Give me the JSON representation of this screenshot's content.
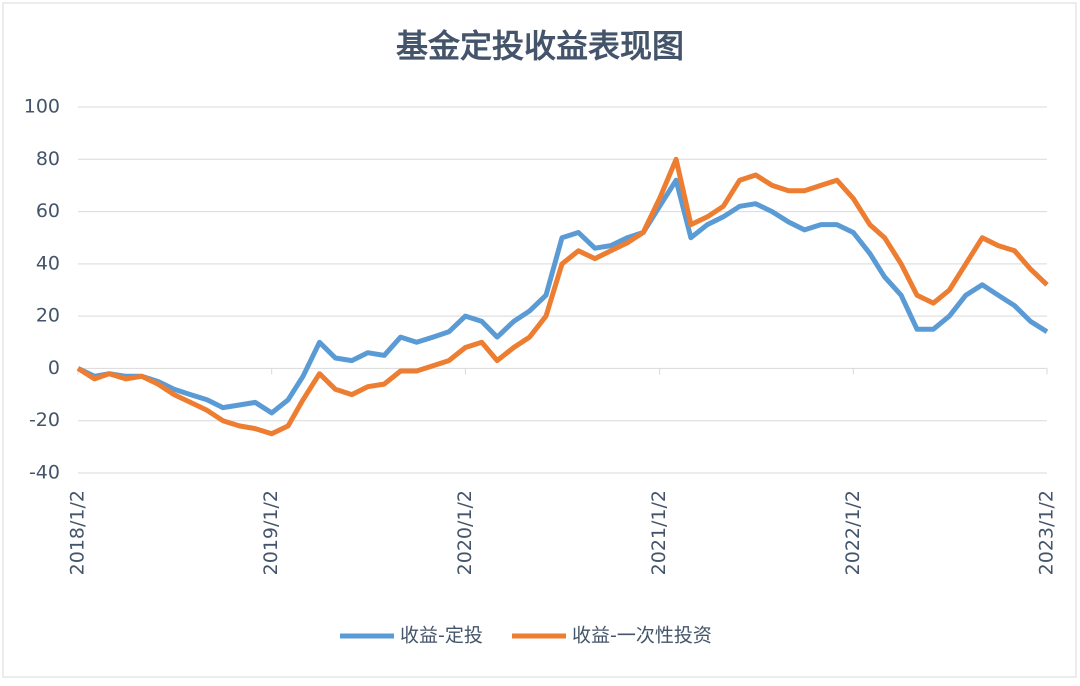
{
  "chart_data": {
    "type": "line",
    "title": "基金定投收益表现图",
    "x": [
      "2018/1/2",
      "2018/2/2",
      "2018/3/2",
      "2018/4/2",
      "2018/5/2",
      "2018/6/2",
      "2018/7/2",
      "2018/8/2",
      "2018/9/2",
      "2018/10/2",
      "2018/11/2",
      "2018/12/2",
      "2019/1/2",
      "2019/2/2",
      "2019/3/2",
      "2019/4/2",
      "2019/5/2",
      "2019/6/2",
      "2019/7/2",
      "2019/8/2",
      "2019/9/2",
      "2019/10/2",
      "2019/11/2",
      "2019/12/2",
      "2020/1/2",
      "2020/2/2",
      "2020/3/2",
      "2020/4/2",
      "2020/5/2",
      "2020/6/2",
      "2020/7/2",
      "2020/8/2",
      "2020/9/2",
      "2020/10/2",
      "2020/11/2",
      "2020/12/2",
      "2021/1/2",
      "2021/2/2",
      "2021/3/2",
      "2021/4/2",
      "2021/5/2",
      "2021/6/2",
      "2021/7/2",
      "2021/8/2",
      "2021/9/2",
      "2021/10/2",
      "2021/11/2",
      "2021/12/2",
      "2022/1/2",
      "2022/2/2",
      "2022/3/2",
      "2022/4/2",
      "2022/5/2",
      "2022/6/2",
      "2022/7/2",
      "2022/8/2",
      "2022/9/2",
      "2022/10/2",
      "2022/11/2",
      "2022/12/2",
      "2023/1/2"
    ],
    "series": [
      {
        "name": "收益-定投",
        "color": "#5b9bd5",
        "values": [
          0,
          -3,
          -2,
          -3,
          -3,
          -5,
          -8,
          -10,
          -12,
          -15,
          -14,
          -13,
          -17,
          -12,
          -3,
          10,
          4,
          3,
          6,
          5,
          12,
          10,
          12,
          14,
          20,
          18,
          12,
          18,
          22,
          28,
          50,
          52,
          46,
          47,
          50,
          52,
          62,
          72,
          50,
          55,
          58,
          62,
          63,
          60,
          56,
          53,
          55,
          55,
          52,
          44,
          35,
          28,
          15,
          15,
          20,
          28,
          32,
          28,
          24,
          18,
          14
        ]
      },
      {
        "name": "收益-一次性投资",
        "color": "#ed7d31",
        "values": [
          0,
          -4,
          -2,
          -4,
          -3,
          -6,
          -10,
          -13,
          -16,
          -20,
          -22,
          -23,
          -25,
          -22,
          -12,
          -2,
          -8,
          -10,
          -7,
          -6,
          -1,
          -1,
          1,
          3,
          8,
          10,
          3,
          8,
          12,
          20,
          40,
          45,
          42,
          45,
          48,
          52,
          65,
          80,
          55,
          58,
          62,
          72,
          74,
          70,
          68,
          68,
          70,
          72,
          65,
          55,
          50,
          40,
          28,
          25,
          30,
          40,
          50,
          47,
          45,
          38,
          32
        ]
      }
    ],
    "xlim": [
      "2018/1/2",
      "2023/1/2"
    ],
    "xticks": [
      "2018/1/2",
      "2019/1/2",
      "2020/1/2",
      "2021/1/2",
      "2022/1/2",
      "2023/1/2"
    ],
    "ylim": [
      -40,
      100
    ],
    "yticks": [
      -40,
      -20,
      0,
      20,
      40,
      60,
      80,
      100
    ],
    "grid": true,
    "legend": "bottom"
  }
}
